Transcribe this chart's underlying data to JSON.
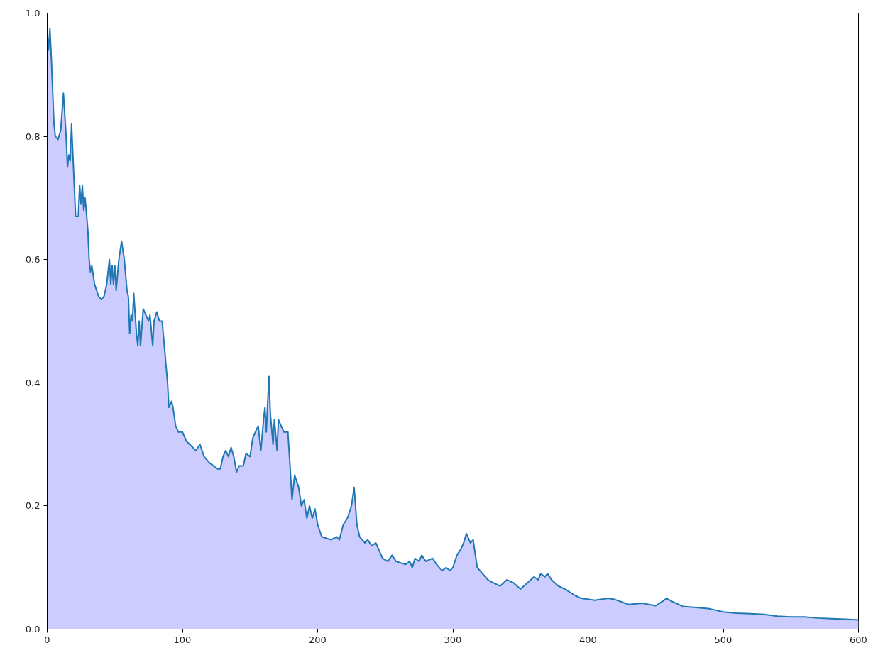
{
  "chart_data": {
    "type": "area",
    "xlim": [
      0,
      600
    ],
    "ylim": [
      0,
      1
    ],
    "xticks": [
      0,
      100,
      200,
      300,
      400,
      500,
      600
    ],
    "yticks": [
      {
        "value": 0,
        "label": "0.0"
      },
      {
        "value": 0.2,
        "label": "0.2"
      },
      {
        "value": 0.4,
        "label": "0.4"
      },
      {
        "value": 0.6,
        "label": "0.6"
      },
      {
        "value": 0.8,
        "label": "0.8"
      },
      {
        "value": 1,
        "label": "1.0"
      }
    ],
    "grid": false,
    "x": [
      0,
      1,
      2,
      3,
      5,
      6,
      8,
      10,
      12,
      14,
      15,
      16,
      17,
      18,
      19,
      20,
      21,
      23,
      24,
      25,
      26,
      27,
      28,
      30,
      31,
      32,
      33,
      35,
      38,
      40,
      42,
      44,
      46,
      47,
      48,
      49,
      50,
      51,
      53,
      55,
      57,
      59,
      60,
      61,
      62,
      63,
      64,
      66,
      67,
      68,
      69,
      71,
      73,
      75,
      76,
      78,
      79,
      81,
      83,
      85,
      87,
      89,
      90,
      92,
      93,
      95,
      97,
      100,
      103,
      110,
      113,
      116,
      120,
      126,
      128,
      130,
      132,
      134,
      136,
      138,
      140,
      142,
      145,
      147,
      150,
      152,
      154,
      156,
      158,
      160,
      161,
      162,
      164,
      165,
      167,
      168,
      170,
      171,
      173,
      175,
      178,
      180,
      181,
      183,
      186,
      188,
      190,
      192,
      194,
      196,
      198,
      200,
      203,
      210,
      214,
      216,
      219,
      222,
      225,
      227,
      229,
      231,
      235,
      237,
      240,
      243,
      245,
      248,
      252,
      255,
      258,
      265,
      268,
      270,
      272,
      275,
      277,
      280,
      285,
      288,
      292,
      295,
      298,
      300,
      303,
      306,
      308,
      310,
      313,
      315,
      318,
      322,
      326,
      330,
      335,
      340,
      345,
      350,
      355,
      360,
      363,
      365,
      368,
      370,
      373,
      378,
      383,
      390,
      395,
      405,
      415,
      420,
      430,
      440,
      450,
      455,
      458,
      462,
      470,
      480,
      490,
      500,
      510,
      520,
      530,
      540,
      550,
      560,
      570,
      580,
      590,
      600
    ],
    "series": [
      {
        "color": "#1f77b4",
        "values": [
          0.97,
          0.94,
          0.975,
          0.93,
          0.82,
          0.8,
          0.795,
          0.81,
          0.87,
          0.8,
          0.75,
          0.77,
          0.76,
          0.82,
          0.77,
          0.72,
          0.67,
          0.67,
          0.72,
          0.69,
          0.72,
          0.68,
          0.7,
          0.65,
          0.6,
          0.58,
          0.59,
          0.56,
          0.54,
          0.535,
          0.54,
          0.56,
          0.6,
          0.56,
          0.59,
          0.56,
          0.59,
          0.55,
          0.6,
          0.63,
          0.6,
          0.55,
          0.54,
          0.48,
          0.51,
          0.5,
          0.545,
          0.48,
          0.46,
          0.5,
          0.46,
          0.52,
          0.51,
          0.5,
          0.51,
          0.46,
          0.5,
          0.515,
          0.5,
          0.5,
          0.45,
          0.4,
          0.36,
          0.37,
          0.36,
          0.33,
          0.32,
          0.32,
          0.305,
          0.29,
          0.3,
          0.28,
          0.27,
          0.26,
          0.26,
          0.28,
          0.29,
          0.28,
          0.295,
          0.28,
          0.255,
          0.265,
          0.265,
          0.285,
          0.28,
          0.31,
          0.32,
          0.33,
          0.29,
          0.34,
          0.36,
          0.32,
          0.41,
          0.35,
          0.3,
          0.34,
          0.29,
          0.34,
          0.33,
          0.32,
          0.32,
          0.25,
          0.21,
          0.25,
          0.23,
          0.2,
          0.21,
          0.18,
          0.2,
          0.18,
          0.195,
          0.17,
          0.15,
          0.145,
          0.15,
          0.145,
          0.17,
          0.18,
          0.2,
          0.23,
          0.17,
          0.15,
          0.14,
          0.145,
          0.135,
          0.14,
          0.13,
          0.115,
          0.11,
          0.12,
          0.11,
          0.105,
          0.11,
          0.1,
          0.115,
          0.11,
          0.12,
          0.11,
          0.115,
          0.105,
          0.095,
          0.1,
          0.095,
          0.1,
          0.12,
          0.13,
          0.14,
          0.155,
          0.14,
          0.145,
          0.1,
          0.09,
          0.08,
          0.075,
          0.07,
          0.08,
          0.075,
          0.065,
          0.075,
          0.085,
          0.08,
          0.09,
          0.085,
          0.09,
          0.08,
          0.07,
          0.065,
          0.055,
          0.05,
          0.047,
          0.05,
          0.048,
          0.04,
          0.042,
          0.038,
          0.045,
          0.05,
          0.045,
          0.037,
          0.035,
          0.033,
          0.028,
          0.026,
          0.025,
          0.024,
          0.021,
          0.02,
          0.02,
          0.018,
          0.017,
          0.016,
          0.015
        ]
      }
    ]
  }
}
